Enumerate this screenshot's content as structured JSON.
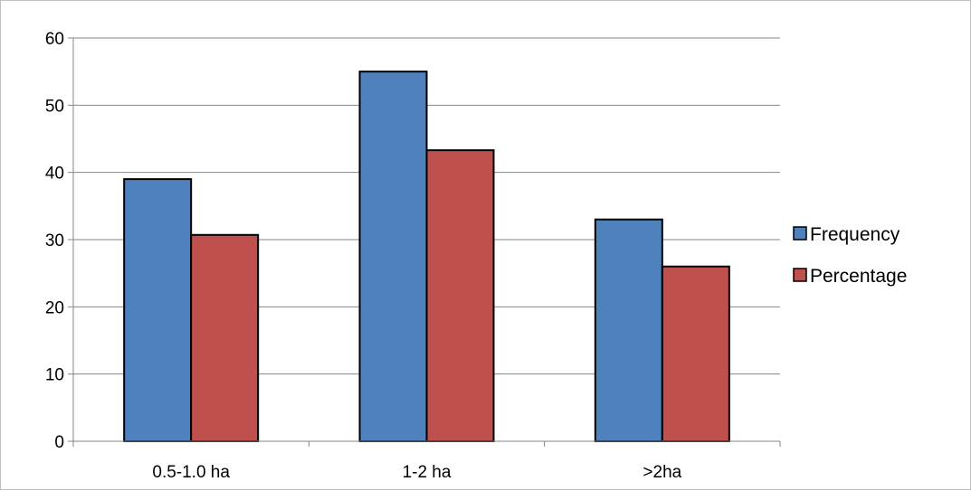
{
  "chart_data": {
    "type": "bar",
    "title": "",
    "xlabel": "",
    "ylabel": "",
    "categories": [
      "0.5-1.0 ha",
      "1-2 ha",
      ">2ha"
    ],
    "series": [
      {
        "name": "Frequency",
        "values": [
          39,
          55,
          33
        ],
        "color": "#4f81bd"
      },
      {
        "name": "Percentage",
        "values": [
          30.7,
          43.3,
          26.0
        ],
        "color": "#c0504d"
      }
    ],
    "ylim": [
      0,
      60
    ],
    "yticks": [
      0,
      10,
      20,
      30,
      40,
      50,
      60
    ],
    "grid": true,
    "legend_position": "right"
  }
}
